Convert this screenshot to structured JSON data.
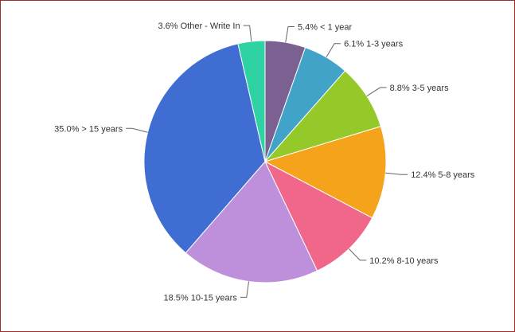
{
  "chart_data": {
    "type": "pie",
    "title": "",
    "slices": [
      {
        "label": "< 1 year",
        "value": 5.4,
        "display": "5.4% < 1 year",
        "color": "#7b6092"
      },
      {
        "label": "1-3 years",
        "value": 6.1,
        "display": "6.1% 1-3 years",
        "color": "#42a3c8"
      },
      {
        "label": "3-5 years",
        "value": 8.8,
        "display": "8.8% 3-5 years",
        "color": "#95c92a"
      },
      {
        "label": "5-8 years",
        "value": 12.4,
        "display": "12.4% 5-8 years",
        "color": "#f5a31a"
      },
      {
        "label": "8-10 years",
        "value": 10.2,
        "display": "10.2% 8-10 years",
        "color": "#f0678a"
      },
      {
        "label": "10-15 years",
        "value": 18.5,
        "display": "18.5% 10-15 years",
        "color": "#be90dc"
      },
      {
        "label": "> 15 years",
        "value": 35.0,
        "display": "35.0% > 15 years",
        "color": "#3f6dd1"
      },
      {
        "label": "Other - Write In",
        "value": 3.6,
        "display": "3.6% Other - Write In",
        "color": "#2fd3a3"
      }
    ],
    "legend": "none",
    "start_angle": "12 o'clock, clockwise"
  }
}
